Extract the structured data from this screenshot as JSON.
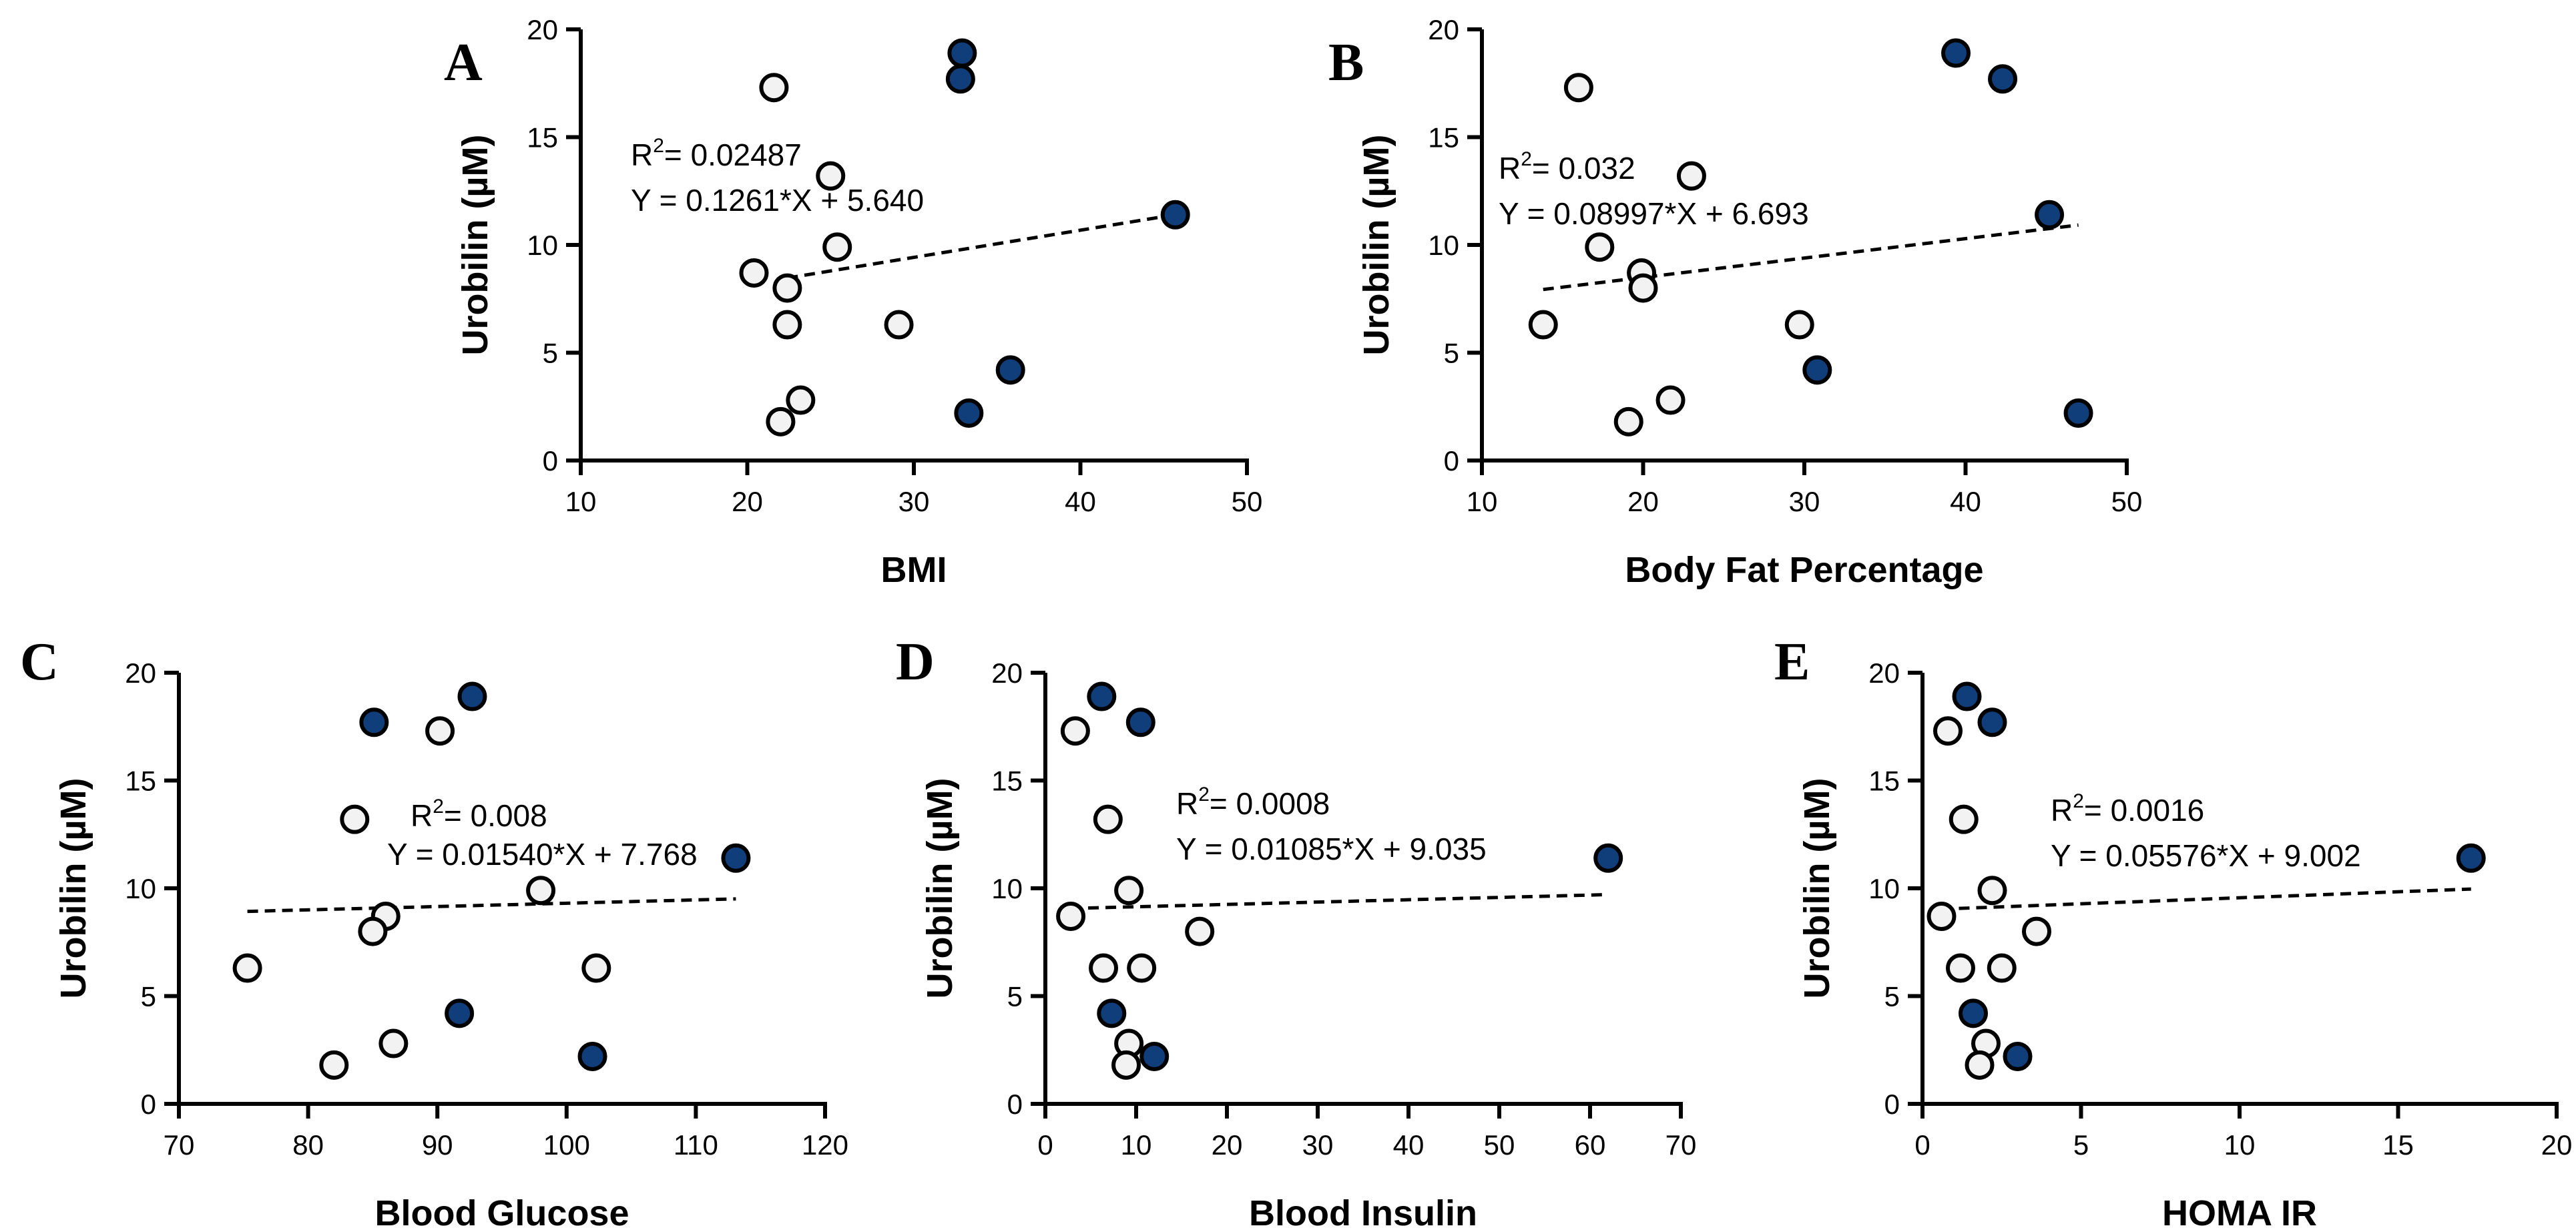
{
  "colors": {
    "axis": "#000000",
    "filled_marker": "#0f3e7a",
    "open_marker": "#f2f2f2",
    "marker_stroke": "#000000",
    "fit_line": "#000000"
  },
  "chart_data": [
    {
      "panel": "A",
      "type": "scatter",
      "xlabel": "BMI",
      "ylabel": "Urobilin (µM)",
      "xlim": [
        10,
        50
      ],
      "ylim": [
        0,
        20
      ],
      "xticks": [
        10,
        20,
        30,
        40,
        50
      ],
      "yticks": [
        0,
        5,
        10,
        15,
        20
      ],
      "annotation": {
        "r2_prefix": "R",
        "r2_sup": "2",
        "r2_value": "= 0.02487",
        "equation": "Y = 0.1261*X + 5.640"
      },
      "fit": {
        "x0": 22.4,
        "x1": 45.7,
        "slope": 0.1261,
        "intercept": 5.64
      },
      "series": [
        {
          "name": "open",
          "points": [
            [
              21.6,
              17.3
            ],
            [
              25.0,
              13.2
            ],
            [
              25.4,
              9.9
            ],
            [
              20.4,
              8.7
            ],
            [
              22.4,
              8.0
            ],
            [
              22.4,
              6.3
            ],
            [
              29.1,
              6.3
            ],
            [
              23.2,
              2.8
            ],
            [
              22.0,
              1.8
            ]
          ]
        },
        {
          "name": "filled",
          "points": [
            [
              32.9,
              18.9
            ],
            [
              32.8,
              17.7
            ],
            [
              45.7,
              11.4
            ],
            [
              35.8,
              4.2
            ],
            [
              33.3,
              2.2
            ]
          ]
        }
      ]
    },
    {
      "panel": "B",
      "type": "scatter",
      "xlabel": "Body Fat Percentage",
      "ylabel": "Urobilin (µM)",
      "xlim": [
        10,
        50
      ],
      "ylim": [
        0,
        20
      ],
      "xticks": [
        10,
        20,
        30,
        40,
        50
      ],
      "yticks": [
        0,
        5,
        10,
        15,
        20
      ],
      "annotation": {
        "r2_prefix": "R",
        "r2_sup": "2",
        "r2_value": "= 0.032",
        "equation": "Y = 0.08997*X + 6.693"
      },
      "fit": {
        "x0": 13.8,
        "x1": 47.0,
        "slope": 0.08997,
        "intercept": 6.693
      },
      "series": [
        {
          "name": "open",
          "points": [
            [
              16.0,
              17.3
            ],
            [
              23.0,
              13.2
            ],
            [
              17.3,
              9.9
            ],
            [
              19.9,
              8.7
            ],
            [
              20.0,
              8.0
            ],
            [
              13.8,
              6.3
            ],
            [
              29.7,
              6.3
            ],
            [
              21.7,
              2.8
            ],
            [
              19.1,
              1.8
            ]
          ]
        },
        {
          "name": "filled",
          "points": [
            [
              39.4,
              18.9
            ],
            [
              42.3,
              17.7
            ],
            [
              45.2,
              11.4
            ],
            [
              30.8,
              4.2
            ],
            [
              47.0,
              2.2
            ]
          ]
        }
      ]
    },
    {
      "panel": "C",
      "type": "scatter",
      "xlabel": "Blood Glucose",
      "ylabel": "Urobilin (µM)",
      "xlim": [
        70,
        120
      ],
      "ylim": [
        0,
        20
      ],
      "xticks": [
        70,
        80,
        90,
        100,
        110,
        120
      ],
      "yticks": [
        0,
        5,
        10,
        15,
        20
      ],
      "annotation": {
        "r2_prefix": "R",
        "r2_sup": "2",
        "r2_value": "= 0.008",
        "equation": "Y = 0.01540*X + 7.768"
      },
      "fit": {
        "x0": 75.3,
        "x1": 113.1,
        "slope": 0.0154,
        "intercept": 7.768
      },
      "series": [
        {
          "name": "open",
          "points": [
            [
              90.2,
              17.3
            ],
            [
              83.6,
              13.2
            ],
            [
              98.0,
              9.9
            ],
            [
              86.0,
              8.7
            ],
            [
              85.0,
              8.0
            ],
            [
              75.3,
              6.3
            ],
            [
              102.3,
              6.3
            ],
            [
              86.6,
              2.8
            ],
            [
              82.0,
              1.8
            ]
          ]
        },
        {
          "name": "filled",
          "points": [
            [
              92.7,
              18.9
            ],
            [
              85.1,
              17.7
            ],
            [
              113.1,
              11.4
            ],
            [
              91.7,
              4.2
            ],
            [
              102.0,
              2.2
            ]
          ]
        }
      ]
    },
    {
      "panel": "D",
      "type": "scatter",
      "xlabel": "Blood Insulin",
      "ylabel": "Urobilin (µM)",
      "xlim": [
        0,
        70
      ],
      "ylim": [
        0,
        20
      ],
      "xticks": [
        0,
        10,
        20,
        30,
        40,
        50,
        60,
        70
      ],
      "yticks": [
        0,
        5,
        10,
        15,
        20
      ],
      "annotation": {
        "r2_prefix": "R",
        "r2_sup": "2",
        "r2_value": "= 0.0008",
        "equation": "Y = 0.01085*X + 9.035"
      },
      "fit": {
        "x0": 2.8,
        "x1": 62.0,
        "slope": 0.01085,
        "intercept": 9.035
      },
      "series": [
        {
          "name": "open",
          "points": [
            [
              3.3,
              17.3
            ],
            [
              6.9,
              13.2
            ],
            [
              9.2,
              9.9
            ],
            [
              2.8,
              8.7
            ],
            [
              17.0,
              8.0
            ],
            [
              6.4,
              6.3
            ],
            [
              10.6,
              6.3
            ],
            [
              9.2,
              2.8
            ],
            [
              8.9,
              1.8
            ]
          ]
        },
        {
          "name": "filled",
          "points": [
            [
              6.2,
              18.9
            ],
            [
              10.5,
              17.7
            ],
            [
              62.0,
              11.4
            ],
            [
              7.3,
              4.2
            ],
            [
              12.0,
              2.2
            ]
          ]
        }
      ]
    },
    {
      "panel": "E",
      "type": "scatter",
      "xlabel": "HOMA IR",
      "ylabel": "Urobilin (µM)",
      "xlim": [
        0,
        20
      ],
      "ylim": [
        0,
        20
      ],
      "xticks": [
        0,
        5,
        10,
        15,
        20
      ],
      "yticks": [
        0,
        5,
        10,
        15,
        20
      ],
      "annotation": {
        "r2_prefix": "R",
        "r2_sup": "2",
        "r2_value": "= 0.0016",
        "equation": "Y = 0.05576*X + 9.002"
      },
      "fit": {
        "x0": 0.6,
        "x1": 17.3,
        "slope": 0.05576,
        "intercept": 9.002
      },
      "series": [
        {
          "name": "open",
          "points": [
            [
              0.8,
              17.3
            ],
            [
              1.3,
              13.2
            ],
            [
              2.2,
              9.9
            ],
            [
              0.6,
              8.7
            ],
            [
              3.6,
              8.0
            ],
            [
              1.2,
              6.3
            ],
            [
              2.5,
              6.3
            ],
            [
              2.0,
              2.8
            ],
            [
              1.8,
              1.8
            ]
          ]
        },
        {
          "name": "filled",
          "points": [
            [
              1.4,
              18.9
            ],
            [
              2.2,
              17.7
            ],
            [
              17.3,
              11.4
            ],
            [
              1.6,
              4.2
            ],
            [
              3.0,
              2.2
            ]
          ]
        }
      ]
    }
  ]
}
